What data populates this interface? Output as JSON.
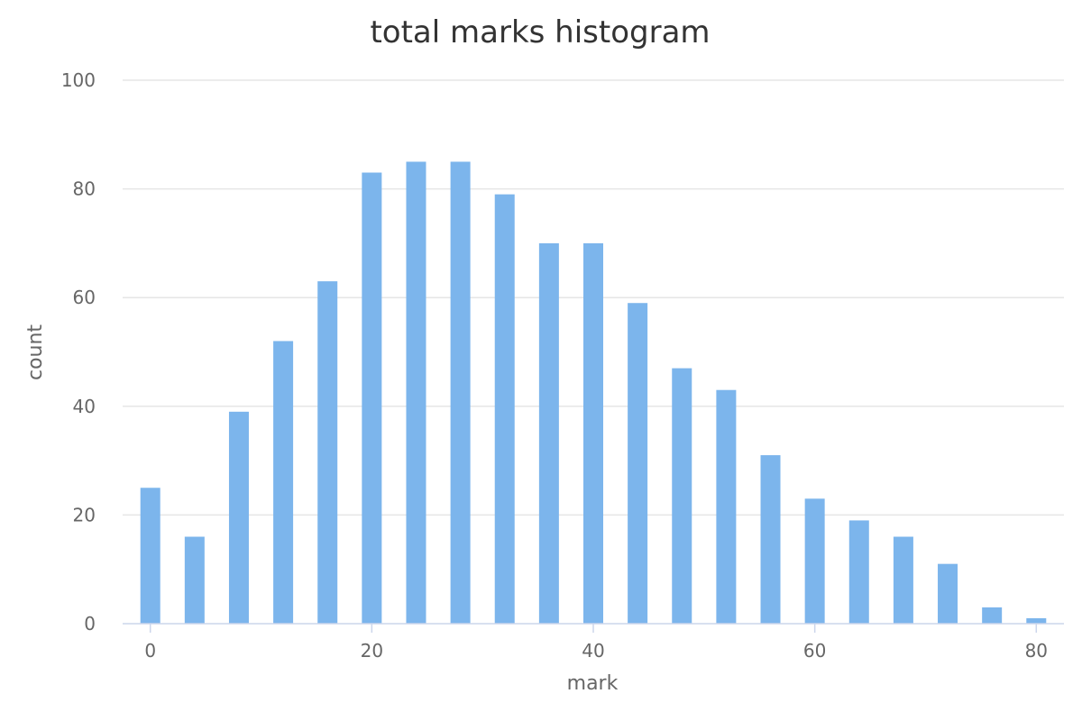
{
  "chart_data": {
    "type": "bar",
    "title": "total marks histogram",
    "xlabel": "mark",
    "ylabel": "count",
    "x": [
      0,
      4,
      8,
      12,
      16,
      20,
      24,
      28,
      32,
      36,
      40,
      44,
      48,
      52,
      56,
      60,
      64,
      68,
      72,
      76,
      80
    ],
    "values": [
      25,
      16,
      39,
      52,
      63,
      83,
      85,
      85,
      79,
      70,
      70,
      59,
      47,
      43,
      31,
      23,
      19,
      16,
      11,
      3,
      1
    ],
    "xlim": [
      -2.5,
      82.5
    ],
    "ylim": [
      0,
      100
    ],
    "xticks": [
      0,
      20,
      40,
      60,
      80
    ],
    "yticks": [
      0,
      20,
      40,
      60,
      80,
      100
    ],
    "grid": true,
    "legend": "none",
    "bar_color": "#7cb5ec"
  }
}
